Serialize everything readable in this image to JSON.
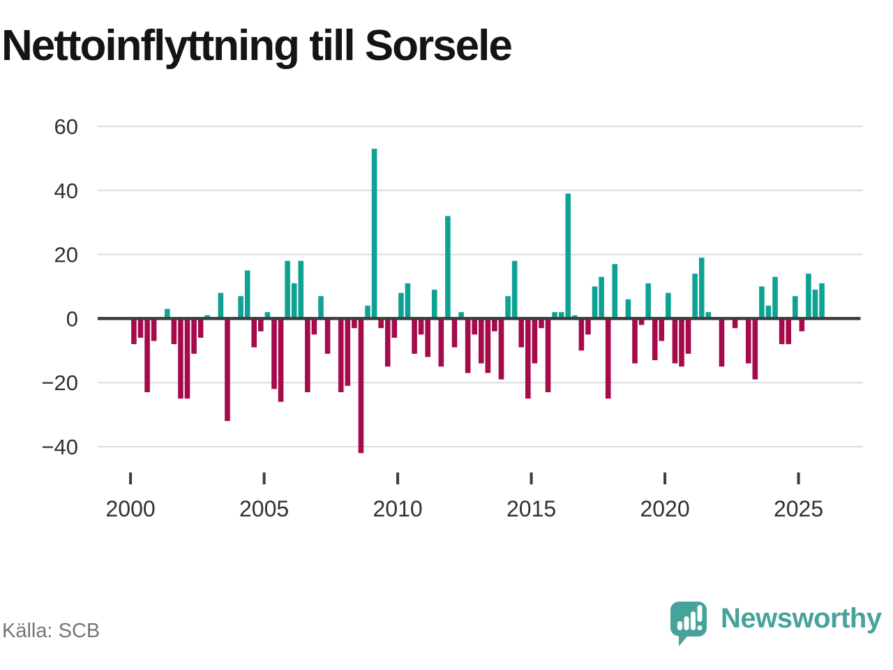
{
  "title": "Nettoinflyttning till Sorsele",
  "source": "Källa: SCB",
  "brand": {
    "name": "Newsworthy",
    "icon": "speech-bubble-bar-chart"
  },
  "colors": {
    "positive": "#0fa294",
    "negative": "#a50b4b",
    "grid": "#dcdcdc",
    "zero_line": "#3d3d3d",
    "axis_text": "#303030",
    "title_text": "#141414",
    "source_text": "#767676",
    "brand_teal": "#47a39a",
    "background": "#ffffff"
  },
  "y_axis": {
    "ticks": [
      60,
      40,
      20,
      0,
      -20,
      -40
    ],
    "labels": [
      "60",
      "40",
      "20",
      "0",
      "−20",
      "−40"
    ]
  },
  "x_axis": {
    "tick_years": [
      2000,
      2005,
      2010,
      2015,
      2020,
      2025
    ],
    "labels": [
      "2000",
      "2005",
      "2010",
      "2015",
      "2020",
      "2025"
    ]
  },
  "chart_data": {
    "type": "bar",
    "title": "Nettoinflyttning till Sorsele",
    "frequency": "quarterly",
    "xlabel": "",
    "ylabel": "",
    "ylim": [
      -45,
      62
    ],
    "grid": true,
    "legend": "none",
    "color_rule": "positive values teal, negative values dark red",
    "x": [
      "2000Q1",
      "2000Q2",
      "2000Q3",
      "2000Q4",
      "2001Q1",
      "2001Q2",
      "2001Q3",
      "2001Q4",
      "2002Q1",
      "2002Q2",
      "2002Q3",
      "2002Q4",
      "2003Q1",
      "2003Q2",
      "2003Q3",
      "2003Q4",
      "2004Q1",
      "2004Q2",
      "2004Q3",
      "2004Q4",
      "2005Q1",
      "2005Q2",
      "2005Q3",
      "2005Q4",
      "2006Q1",
      "2006Q2",
      "2006Q3",
      "2006Q4",
      "2007Q1",
      "2007Q2",
      "2007Q3",
      "2007Q4",
      "2008Q1",
      "2008Q2",
      "2008Q3",
      "2008Q4",
      "2009Q1",
      "2009Q2",
      "2009Q3",
      "2009Q4",
      "2010Q1",
      "2010Q2",
      "2010Q3",
      "2010Q4",
      "2011Q1",
      "2011Q2",
      "2011Q3",
      "2011Q4",
      "2012Q1",
      "2012Q2",
      "2012Q3",
      "2012Q4",
      "2013Q1",
      "2013Q2",
      "2013Q3",
      "2013Q4",
      "2014Q1",
      "2014Q2",
      "2014Q3",
      "2014Q4",
      "2015Q1",
      "2015Q2",
      "2015Q3",
      "2015Q4",
      "2016Q1",
      "2016Q2",
      "2016Q3",
      "2016Q4",
      "2017Q1",
      "2017Q2",
      "2017Q3",
      "2017Q4",
      "2018Q1",
      "2018Q2",
      "2018Q3",
      "2018Q4",
      "2019Q1",
      "2019Q2",
      "2019Q3",
      "2019Q4",
      "2020Q1",
      "2020Q2",
      "2020Q3",
      "2020Q4",
      "2021Q1",
      "2021Q2",
      "2021Q3",
      "2021Q4",
      "2022Q1",
      "2022Q2",
      "2022Q3",
      "2022Q4",
      "2023Q1",
      "2023Q2",
      "2023Q3",
      "2023Q4",
      "2024Q1",
      "2024Q2",
      "2024Q3",
      "2024Q4",
      "2025Q1",
      "2025Q2",
      "2025Q3",
      "2025Q4"
    ],
    "values": [
      -8,
      -6,
      -23,
      -7,
      0,
      3,
      -8,
      -25,
      -25,
      -11,
      -6,
      1,
      0,
      8,
      -32,
      0,
      7,
      15,
      -9,
      -4,
      2,
      -22,
      -26,
      18,
      11,
      18,
      -23,
      -5,
      7,
      -11,
      0,
      -23,
      -21,
      -3,
      -42,
      4,
      53,
      -3,
      -15,
      -6,
      8,
      11,
      -11,
      -5,
      -12,
      9,
      -15,
      32,
      -9,
      2,
      -17,
      -5,
      -14,
      -17,
      -4,
      -19,
      7,
      18,
      -9,
      -25,
      -14,
      -3,
      -23,
      2,
      2,
      39,
      1,
      -10,
      -5,
      10,
      13,
      -25,
      17,
      0,
      6,
      -14,
      -2,
      11,
      -13,
      -7,
      8,
      -14,
      -15,
      -11,
      14,
      19,
      2,
      0,
      -15,
      0,
      -3,
      0,
      -14,
      -19,
      10,
      4,
      13,
      -8,
      -8,
      7,
      -4,
      14,
      9,
      11
    ]
  }
}
